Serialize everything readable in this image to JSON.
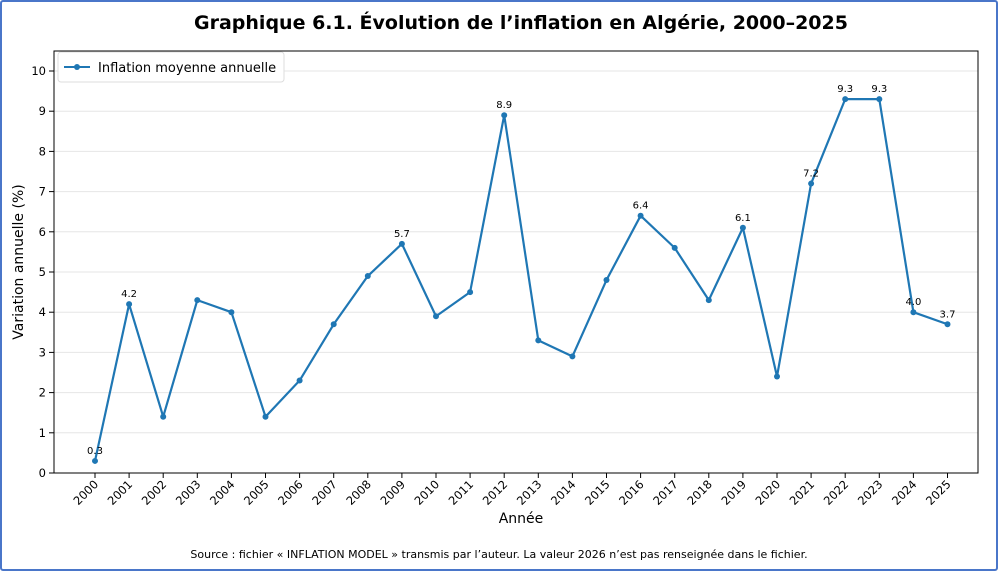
{
  "chart_data": {
    "type": "line",
    "title": "Graphique 6.1. Évolution de l’inflation en Algérie, 2000–2025",
    "xlabel": "Année",
    "ylabel": "Variation annuelle (%)",
    "ylim": [
      0,
      10
    ],
    "yticks": [
      0,
      1,
      2,
      3,
      4,
      5,
      6,
      7,
      8,
      9,
      10
    ],
    "grid": "horizontal",
    "legend_position": "top-left",
    "categories": [
      "2000",
      "2001",
      "2002",
      "2003",
      "2004",
      "2005",
      "2006",
      "2007",
      "2008",
      "2009",
      "2010",
      "2011",
      "2012",
      "2013",
      "2014",
      "2015",
      "2016",
      "2017",
      "2018",
      "2019",
      "2020",
      "2021",
      "2022",
      "2023",
      "2024",
      "2025"
    ],
    "series": [
      {
        "name": "Inflation moyenne annuelle",
        "color": "#1f77b4",
        "values": [
          0.3,
          4.2,
          1.4,
          4.3,
          4.0,
          1.4,
          2.3,
          3.7,
          4.9,
          5.7,
          3.9,
          4.5,
          8.9,
          3.3,
          2.9,
          4.8,
          6.4,
          5.6,
          4.3,
          6.1,
          2.4,
          7.2,
          9.3,
          9.3,
          4.0,
          3.7
        ]
      }
    ],
    "annotations": [
      {
        "x": "2000",
        "text": "0.3"
      },
      {
        "x": "2001",
        "text": "4.2"
      },
      {
        "x": "2009",
        "text": "5.7"
      },
      {
        "x": "2012",
        "text": "8.9"
      },
      {
        "x": "2016",
        "text": "6.4"
      },
      {
        "x": "2019",
        "text": "6.1"
      },
      {
        "x": "2021",
        "text": "7.2"
      },
      {
        "x": "2022",
        "text": "9.3"
      },
      {
        "x": "2023",
        "text": "9.3"
      },
      {
        "x": "2024",
        "text": "4.0"
      },
      {
        "x": "2025",
        "text": "3.7"
      }
    ],
    "source_note": "Source : fichier « INFLATION MODEL » transmis par l’auteur. La valeur 2026 n’est pas renseignée dans le fichier."
  }
}
